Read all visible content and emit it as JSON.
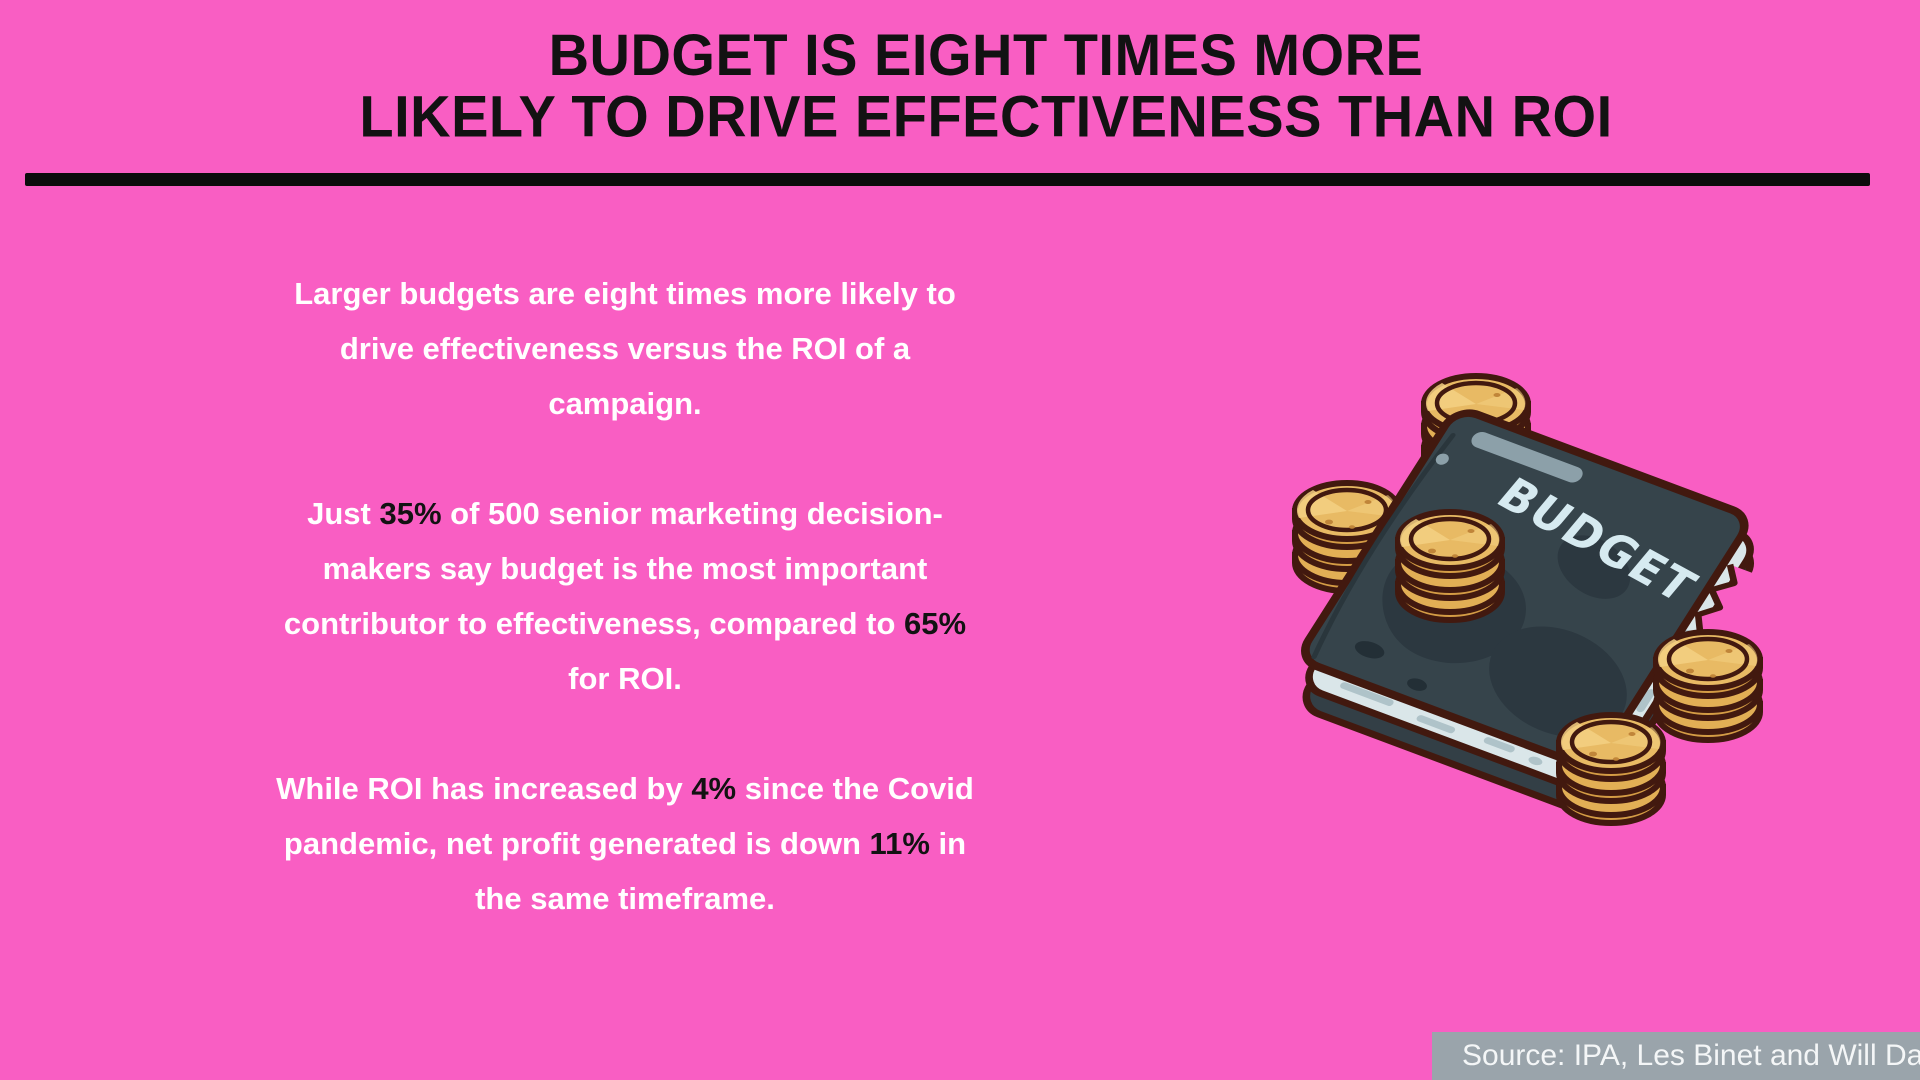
{
  "theme": {
    "background": "#F95EC3",
    "title_color": "#121212",
    "rule_color": "#0C0C0C",
    "body_text_color": "#FFFFFF",
    "highlight_color": "#121212",
    "source_bar_color": "#9AA4AB",
    "source_text_color": "#F4F6F7",
    "book_cover": "#36444B",
    "book_cover_blob": "#2C3840",
    "book_pages": "#DAE6E9",
    "book_outline": "#42190F",
    "book_label_color": "#D6EAF0",
    "coin_face": "#E8BA64",
    "coin_rim": "#D49C45",
    "coin_shine": "#F3D082"
  },
  "title": {
    "line1": "BUDGET IS EIGHT TIMES MORE",
    "line2": "LIKELY TO DRIVE EFFECTIVENESS THAN ROI"
  },
  "body": {
    "paragraphs": [
      {
        "lines": [
          [
            {
              "text": "Larger budgets are eight times more likely to",
              "highlight": false
            }
          ],
          [
            {
              "text": "drive effectiveness versus the ROI of a",
              "highlight": false
            }
          ],
          [
            {
              "text": "campaign.",
              "highlight": false
            }
          ]
        ]
      },
      {
        "lines": [
          [
            {
              "text": "Just ",
              "highlight": false
            },
            {
              "text": "35%",
              "highlight": true
            },
            {
              "text": " of 500 senior marketing decision-",
              "highlight": false
            }
          ],
          [
            {
              "text": "makers say budget is the most important",
              "highlight": false
            }
          ],
          [
            {
              "text": "contributor to effectiveness, compared to ",
              "highlight": false
            },
            {
              "text": "65%",
              "highlight": true
            }
          ],
          [
            {
              "text": "for ROI.",
              "highlight": false
            }
          ]
        ]
      },
      {
        "lines": [
          [
            {
              "text": "While ROI has increased by ",
              "highlight": false
            },
            {
              "text": "4%",
              "highlight": true
            },
            {
              "text": " since the Covid",
              "highlight": false
            }
          ],
          [
            {
              "text": "pandemic, net profit generated is down ",
              "highlight": false
            },
            {
              "text": "11%",
              "highlight": true
            },
            {
              "text": " in",
              "highlight": false
            }
          ],
          [
            {
              "text": "the same timeframe.",
              "highlight": false
            }
          ]
        ]
      }
    ]
  },
  "illustration": {
    "book_label": "BUDGET",
    "description": "Dark budget book with stacks of gold coins"
  },
  "source": {
    "label": "Source: IPA, Les Binet and Will Davis"
  }
}
